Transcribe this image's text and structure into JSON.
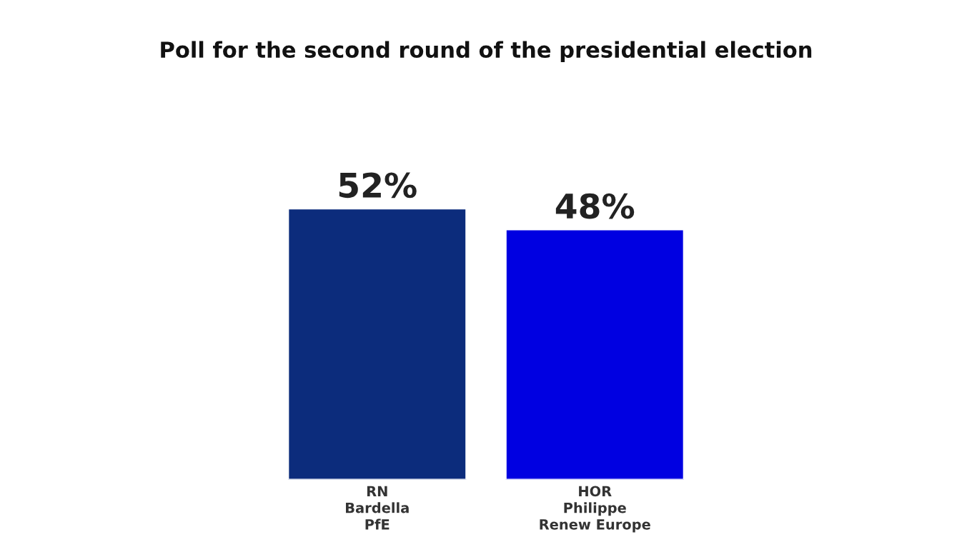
{
  "chart_data": {
    "type": "bar",
    "title": "Poll for the second round of the presidential election",
    "categories": [
      "RN\nBardella\nPfE",
      "HOR\nPhilippe\nRenew Europe"
    ],
    "values": [
      52,
      48
    ],
    "colors": [
      "#0c2c7c",
      "#0000e1"
    ],
    "value_labels": [
      "52%",
      "48%"
    ],
    "grid": false,
    "legend": false
  }
}
